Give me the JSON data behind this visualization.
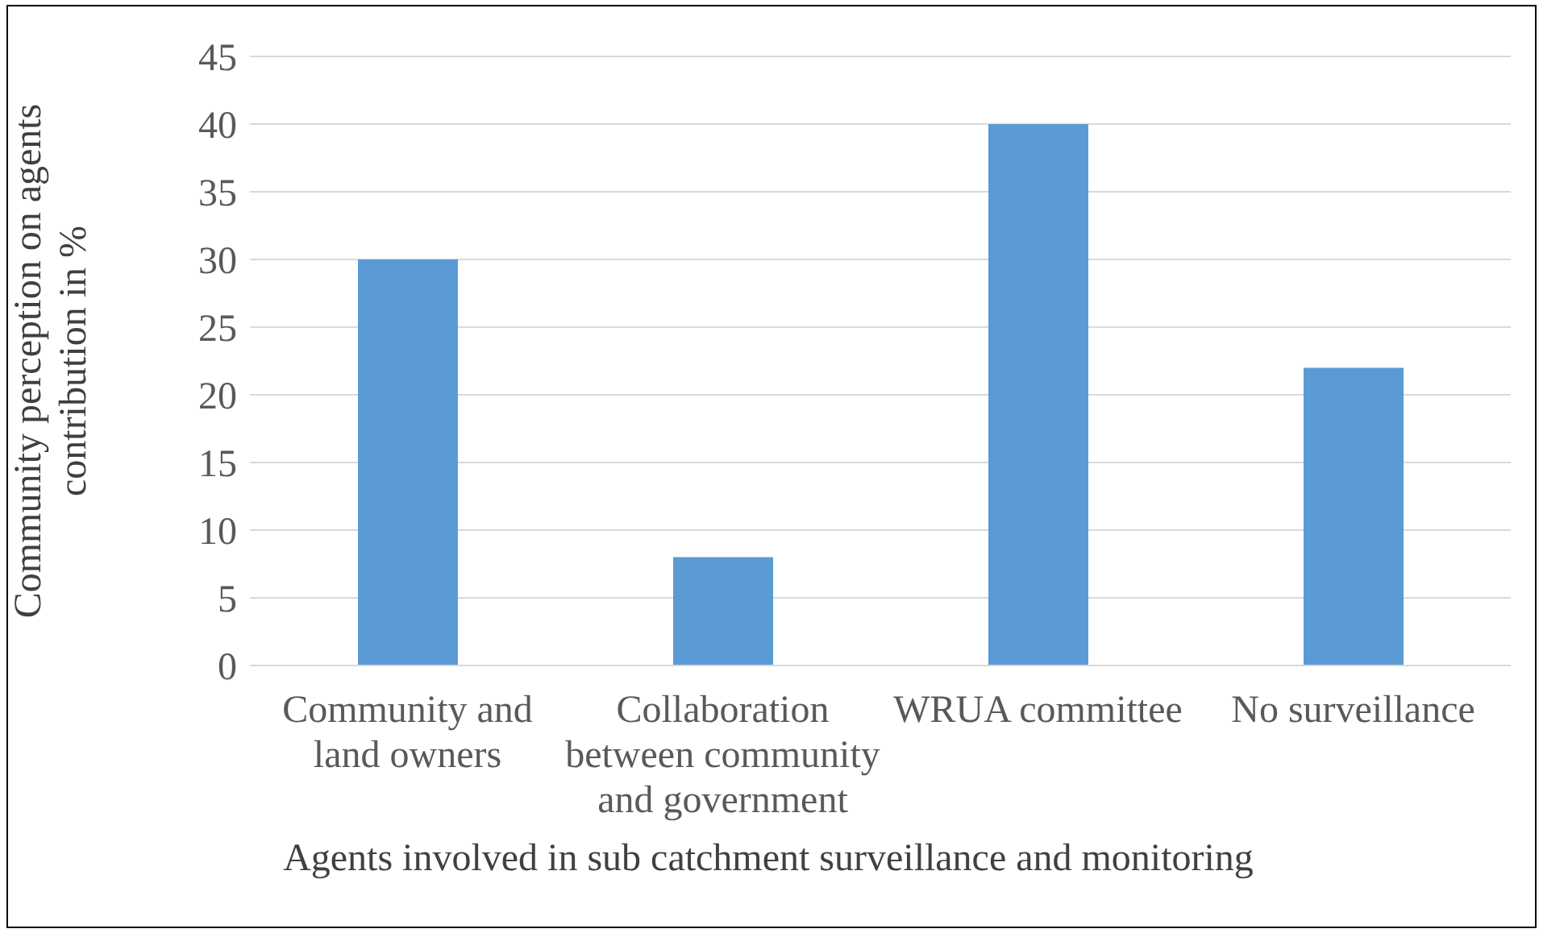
{
  "chart_data": {
    "type": "bar",
    "xlabel": "Agents involved in sub catchment surveillance and monitoring",
    "ylabel": "Community perception on agents contribution in %",
    "categories": [
      "Community and land owners",
      "Collaboration between community and government",
      "WRUA committee",
      "No surveillance"
    ],
    "values": [
      30,
      8,
      40,
      22
    ],
    "color": "#5b9bd5",
    "ylim": [
      0,
      45
    ],
    "yticks": [
      0,
      5,
      10,
      15,
      20,
      25,
      30,
      35,
      40,
      45
    ],
    "grid": "y"
  }
}
